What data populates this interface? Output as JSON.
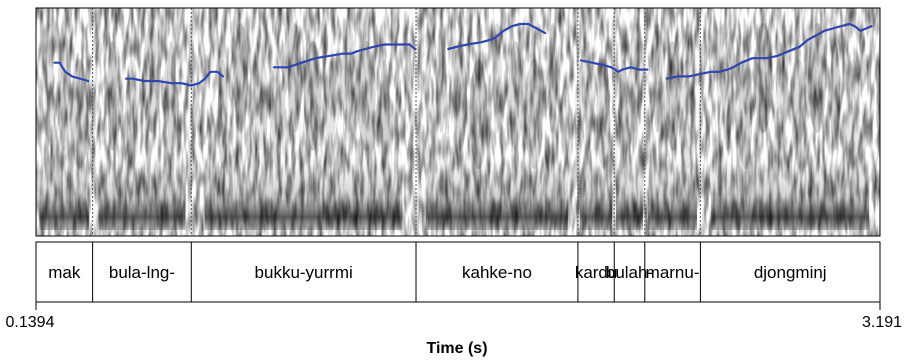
{
  "chart_data": {
    "type": "spectrogram",
    "xlabel": "Time (s)",
    "xlim": [
      0.1394,
      3.191
    ],
    "x_start_label": "0.1394",
    "x_end_label": "3.191",
    "colors": {
      "pitch": "#2f45b0",
      "ink": "#000000",
      "grid": "#555555"
    },
    "boundaries": [
      0.3441,
      0.7009,
      1.5134,
      2.0988,
      2.2301,
      2.3406,
      2.5416
    ],
    "segments": [
      {
        "label": "mak",
        "start": 0.1394,
        "end": 0.3441
      },
      {
        "label": "bula-lng-",
        "start": 0.3441,
        "end": 0.7009
      },
      {
        "label": "bukku-yurrmi",
        "start": 0.7009,
        "end": 1.5134
      },
      {
        "label": "kahke-no",
        "start": 1.5134,
        "end": 2.0988
      },
      {
        "label": "kardu",
        "start": 2.0988,
        "end": 2.2301
      },
      {
        "label": "bulah-",
        "start": 2.2301,
        "end": 2.3406
      },
      {
        "label": "marnu-",
        "start": 2.3406,
        "end": 2.5416
      },
      {
        "label": "djongminj",
        "start": 2.5416,
        "end": 3.191
      }
    ],
    "pitch_contour": [
      [
        [
          0.206,
          0.76
        ],
        [
          0.225,
          0.76
        ],
        [
          0.245,
          0.72
        ],
        [
          0.27,
          0.7
        ],
        [
          0.3,
          0.69
        ],
        [
          0.328,
          0.68
        ]
      ],
      [
        [
          0.465,
          0.69
        ],
        [
          0.49,
          0.69
        ],
        [
          0.53,
          0.68
        ],
        [
          0.58,
          0.68
        ],
        [
          0.63,
          0.67
        ],
        [
          0.665,
          0.67
        ],
        [
          0.7,
          0.66
        ],
        [
          0.73,
          0.67
        ],
        [
          0.75,
          0.69
        ],
        [
          0.77,
          0.72
        ],
        [
          0.795,
          0.72
        ],
        [
          0.815,
          0.7
        ]
      ],
      [
        [
          1.0,
          0.74
        ],
        [
          1.05,
          0.74
        ],
        [
          1.1,
          0.76
        ],
        [
          1.15,
          0.78
        ],
        [
          1.2,
          0.79
        ],
        [
          1.25,
          0.8
        ],
        [
          1.28,
          0.8
        ],
        [
          1.3,
          0.81
        ],
        [
          1.33,
          0.82
        ],
        [
          1.36,
          0.83
        ],
        [
          1.4,
          0.84
        ],
        [
          1.43,
          0.84
        ],
        [
          1.46,
          0.84
        ],
        [
          1.49,
          0.84
        ],
        [
          1.51,
          0.82
        ]
      ],
      [
        [
          1.63,
          0.82
        ],
        [
          1.66,
          0.83
        ],
        [
          1.7,
          0.84
        ],
        [
          1.75,
          0.85
        ],
        [
          1.78,
          0.86
        ],
        [
          1.8,
          0.87
        ],
        [
          1.83,
          0.9
        ],
        [
          1.86,
          0.92
        ],
        [
          1.89,
          0.93
        ],
        [
          1.92,
          0.93
        ],
        [
          1.95,
          0.91
        ],
        [
          1.98,
          0.89
        ]
      ],
      [
        [
          2.11,
          0.77
        ],
        [
          2.15,
          0.76
        ],
        [
          2.19,
          0.75
        ],
        [
          2.22,
          0.74
        ],
        [
          2.245,
          0.72
        ],
        [
          2.26,
          0.73
        ],
        [
          2.29,
          0.74
        ],
        [
          2.32,
          0.73
        ],
        [
          2.35,
          0.73
        ]
      ],
      [
        [
          2.42,
          0.69
        ],
        [
          2.46,
          0.7
        ],
        [
          2.5,
          0.7
        ],
        [
          2.54,
          0.71
        ],
        [
          2.58,
          0.72
        ],
        [
          2.61,
          0.72
        ],
        [
          2.64,
          0.73
        ],
        [
          2.66,
          0.74
        ],
        [
          2.69,
          0.76
        ],
        [
          2.73,
          0.78
        ],
        [
          2.78,
          0.78
        ],
        [
          2.82,
          0.79
        ],
        [
          2.86,
          0.81
        ],
        [
          2.9,
          0.83
        ],
        [
          2.93,
          0.86
        ],
        [
          2.96,
          0.88
        ],
        [
          2.99,
          0.9
        ],
        [
          3.02,
          0.91
        ],
        [
          3.05,
          0.92
        ],
        [
          3.08,
          0.93
        ],
        [
          3.1,
          0.92
        ],
        [
          3.12,
          0.9
        ],
        [
          3.14,
          0.91
        ],
        [
          3.16,
          0.92
        ]
      ]
    ]
  }
}
